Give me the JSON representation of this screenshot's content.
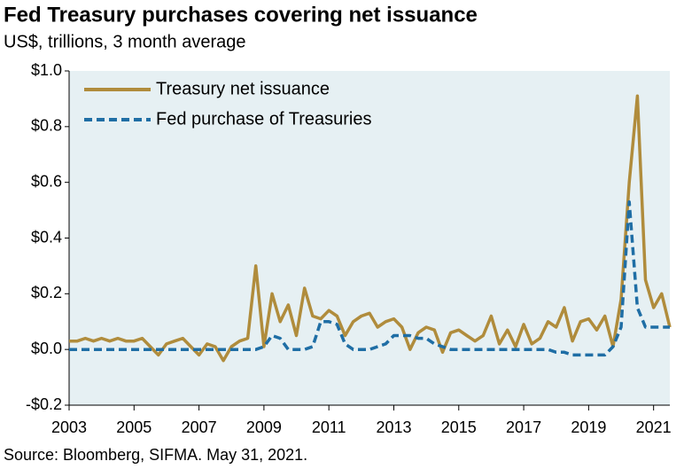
{
  "chart_data": {
    "type": "line",
    "title": "Fed Treasury purchases covering net issuance",
    "subtitle": "US$, trillions, 3 month average",
    "source": "Source: Bloomberg, SIFMA. May 31, 2021.",
    "x": [
      2003,
      2003.25,
      2003.5,
      2003.75,
      2004,
      2004.25,
      2004.5,
      2004.75,
      2005,
      2005.25,
      2005.5,
      2005.75,
      2006,
      2006.25,
      2006.5,
      2006.75,
      2007,
      2007.25,
      2007.5,
      2007.75,
      2008,
      2008.25,
      2008.5,
      2008.75,
      2009,
      2009.25,
      2009.5,
      2009.75,
      2010,
      2010.25,
      2010.5,
      2010.75,
      2011,
      2011.25,
      2011.5,
      2011.75,
      2012,
      2012.25,
      2012.5,
      2012.75,
      2013,
      2013.25,
      2013.5,
      2013.75,
      2014,
      2014.25,
      2014.5,
      2014.75,
      2015,
      2015.25,
      2015.5,
      2015.75,
      2016,
      2016.25,
      2016.5,
      2016.75,
      2017,
      2017.25,
      2017.5,
      2017.75,
      2018,
      2018.25,
      2018.5,
      2018.75,
      2019,
      2019.25,
      2019.5,
      2019.75,
      2020,
      2020.25,
      2020.5,
      2020.75,
      2021,
      2021.25,
      2021.5
    ],
    "series": [
      {
        "name": "Treasury net issuance",
        "color": "#b08c3c",
        "style": "solid",
        "values": [
          0.03,
          0.03,
          0.04,
          0.03,
          0.04,
          0.03,
          0.04,
          0.03,
          0.03,
          0.04,
          0.01,
          -0.02,
          0.02,
          0.03,
          0.04,
          0.01,
          -0.02,
          0.02,
          0.01,
          -0.04,
          0.01,
          0.03,
          0.04,
          0.3,
          0.01,
          0.2,
          0.1,
          0.16,
          0.05,
          0.22,
          0.12,
          0.11,
          0.14,
          0.12,
          0.05,
          0.1,
          0.12,
          0.13,
          0.08,
          0.1,
          0.11,
          0.08,
          0.0,
          0.06,
          0.08,
          0.07,
          -0.01,
          0.06,
          0.07,
          0.05,
          0.03,
          0.05,
          0.12,
          0.02,
          0.07,
          0.01,
          0.09,
          0.02,
          0.04,
          0.1,
          0.08,
          0.15,
          0.03,
          0.1,
          0.11,
          0.07,
          0.12,
          0.01,
          0.18,
          0.6,
          0.91,
          0.25,
          0.15,
          0.2,
          0.08
        ]
      },
      {
        "name": "Fed purchase of Treasuries",
        "color": "#1f6ea5",
        "style": "dashed",
        "values": [
          0,
          0,
          0,
          0,
          0,
          0,
          0,
          0,
          0,
          0,
          0,
          0,
          0,
          0,
          0,
          0,
          0,
          0,
          0,
          0,
          0,
          0,
          0,
          0,
          0.01,
          0.05,
          0.04,
          0,
          0,
          0,
          0.01,
          0.1,
          0.1,
          0.09,
          0.02,
          0,
          0,
          0,
          0.01,
          0.02,
          0.05,
          0.05,
          0.05,
          0.04,
          0.04,
          0.02,
          0.01,
          0,
          0,
          0,
          0,
          0,
          0,
          0,
          0,
          0,
          0,
          0,
          0,
          0,
          -0.01,
          -0.01,
          -0.02,
          -0.02,
          -0.02,
          -0.02,
          -0.02,
          0.01,
          0.08,
          0.53,
          0.15,
          0.08,
          0.08,
          0.08,
          0.08
        ]
      }
    ],
    "xlim": [
      2003,
      2021.5
    ],
    "xticks": [
      2003,
      2005,
      2007,
      2009,
      2011,
      2013,
      2015,
      2017,
      2019,
      2021
    ],
    "ylim": [
      -0.2,
      1.0
    ],
    "yticks": [
      {
        "value": -0.2,
        "label": "-$0.2"
      },
      {
        "value": 0,
        "label": "$0.0"
      },
      {
        "value": 0.2,
        "label": "$0.2"
      },
      {
        "value": 0.4,
        "label": "$0.4"
      },
      {
        "value": 0.6,
        "label": "$0.6"
      },
      {
        "value": 0.8,
        "label": "$0.8"
      },
      {
        "value": 1.0,
        "label": "$1.0"
      }
    ],
    "grid": false,
    "legend": "upper left",
    "background": "#e6f0f3"
  }
}
